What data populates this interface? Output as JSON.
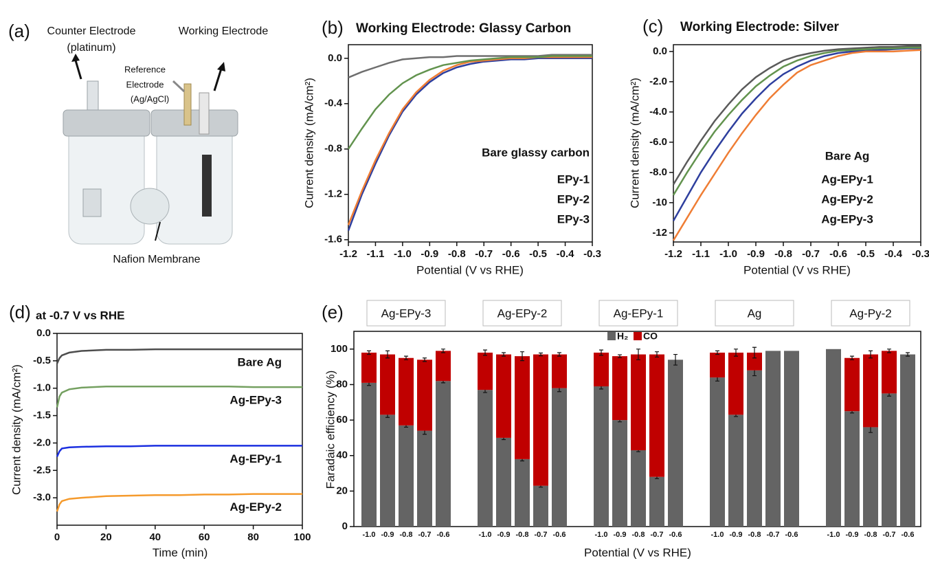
{
  "panel_a": {
    "label": "(a)",
    "counter_electrode": "Counter Electrode",
    "counter_material": "(platinum)",
    "working_electrode": "Working  Electrode",
    "reference_1": "Reference",
    "reference_2": "Electrode",
    "reference_material": "(Ag/AgCl)",
    "membrane": "Nafion Membrane"
  },
  "chart_data": [
    {
      "type": "line",
      "panel_label": "(b)",
      "title": "Working Electrode: Glassy Carbon",
      "x_label": "Potential (V vs RHE)",
      "y_label": "Current density (mA/cm²)",
      "x": [
        -1.2,
        -1.15,
        -1.1,
        -1.05,
        -1,
        -0.95,
        -0.9,
        -0.85,
        -0.8,
        -0.75,
        -0.7,
        -0.65,
        -0.6,
        -0.55,
        -0.5,
        -0.45,
        -0.4,
        -0.35,
        -0.3
      ],
      "xlim": [
        -1.2,
        -0.3
      ],
      "xticks": [
        -1.2,
        -1.1,
        {
          "value": -1,
          "label": "-1.0"
        },
        -0.9,
        -0.8,
        -0.7,
        -0.6,
        -0.5,
        -0.4,
        -0.3
      ],
      "ylim": [
        -1.62,
        0.12
      ],
      "yticks": [
        {
          "value": 0,
          "label": "0.0"
        },
        -0.4,
        -0.8,
        -1.2,
        -1.6
      ],
      "series": [
        {
          "name": "Bare glassy carbon",
          "color": "#6e6e6e",
          "values": [
            -0.17,
            -0.12,
            -0.08,
            -0.04,
            -0.01,
            0,
            0.01,
            0.01,
            0.02,
            0.02,
            0.02,
            0.02,
            0.02,
            0.02,
            0.02,
            0.03,
            0.03,
            0.03,
            0.03
          ]
        },
        {
          "name": "EPy-1",
          "color": "#2e3f9e",
          "values": [
            -1.52,
            -1.2,
            -0.93,
            -0.68,
            -0.47,
            -0.32,
            -0.21,
            -0.13,
            -0.08,
            -0.05,
            -0.03,
            -0.02,
            -0.01,
            -0.01,
            0,
            0,
            0,
            0,
            0
          ]
        },
        {
          "name": "EPy-2",
          "color": "#ef7d34",
          "values": [
            -1.47,
            -1.17,
            -0.9,
            -0.66,
            -0.45,
            -0.3,
            -0.19,
            -0.11,
            -0.06,
            -0.03,
            -0.02,
            -0.01,
            0,
            0,
            0.01,
            0.01,
            0.01,
            0.01,
            0.01
          ]
        },
        {
          "name": "EPy-3",
          "color": "#62934e",
          "values": [
            -0.8,
            -0.62,
            -0.45,
            -0.32,
            -0.22,
            -0.15,
            -0.1,
            -0.06,
            -0.04,
            -0.02,
            -0.01,
            0,
            0.01,
            0.01,
            0.01,
            0.02,
            0.02,
            0.02,
            0.02
          ]
        }
      ]
    },
    {
      "type": "line",
      "panel_label": "(c)",
      "title": "Working Electrode: Silver",
      "x_label": "Potential (V vs RHE)",
      "y_label": "Current density (mA/cm²)",
      "x": [
        -1.2,
        -1.15,
        -1.1,
        -1.05,
        -1,
        -0.95,
        -0.9,
        -0.85,
        -0.8,
        -0.75,
        -0.7,
        -0.65,
        -0.6,
        -0.55,
        -0.5,
        -0.45,
        -0.4,
        -0.35,
        -0.3
      ],
      "xlim": [
        -1.2,
        -0.3
      ],
      "xticks": [
        -1.2,
        -1.1,
        {
          "value": -1,
          "label": "-1.0"
        },
        -0.9,
        -0.8,
        -0.7,
        -0.6,
        -0.5,
        -0.4,
        -0.3
      ],
      "ylim": [
        -12.6,
        0.45
      ],
      "yticks": [
        {
          "value": 0,
          "label": "0.0"
        },
        {
          "value": -2,
          "label": "-2.0"
        },
        {
          "value": -4,
          "label": "-4.0"
        },
        {
          "value": -6,
          "label": "-6.0"
        },
        {
          "value": -8,
          "label": "-8.0"
        },
        -10,
        -12
      ],
      "series": [
        {
          "name": "Bare Ag",
          "color": "#5a5a5a",
          "values": [
            -8.8,
            -7.3,
            -5.9,
            -4.6,
            -3.5,
            -2.5,
            -1.7,
            -1.1,
            -0.6,
            -0.3,
            -0.1,
            0.05,
            0.15,
            0.2,
            0.25,
            0.3,
            0.3,
            0.35,
            0.35
          ]
        },
        {
          "name": "Ag-EPy-1",
          "color": "#2e3f9e",
          "values": [
            -11.2,
            -9.6,
            -8,
            -6.6,
            -5.3,
            -4.1,
            -3.1,
            -2.2,
            -1.5,
            -1,
            -0.6,
            -0.3,
            -0.1,
            0,
            0.05,
            0.1,
            0.15,
            0.2,
            0.2
          ]
        },
        {
          "name": "Ag-EPy-2",
          "color": "#ef7d34",
          "values": [
            -12.5,
            -11,
            -9.5,
            -8.1,
            -6.7,
            -5.4,
            -4.2,
            -3.1,
            -2.2,
            -1.4,
            -0.9,
            -0.6,
            -0.3,
            -0.1,
            0,
            0,
            0,
            0.05,
            0.1
          ]
        },
        {
          "name": "Ag-EPy-3",
          "color": "#62934e",
          "values": [
            -9.5,
            -8,
            -6.6,
            -5.3,
            -4.2,
            -3.2,
            -2.3,
            -1.6,
            -1,
            -0.6,
            -0.3,
            -0.1,
            0.05,
            0.1,
            0.15,
            0.2,
            0.2,
            0.25,
            0.25
          ]
        }
      ]
    },
    {
      "type": "line",
      "panel_label": "(d)",
      "title": "at -0.7 V vs RHE",
      "x_label": "Time (min)",
      "y_label": "Current density (mA/cm²)",
      "x": [
        0,
        1,
        2,
        5,
        10,
        20,
        30,
        40,
        50,
        60,
        70,
        80,
        90,
        100
      ],
      "xlim": [
        0,
        100
      ],
      "xticks": [
        0,
        20,
        40,
        60,
        80,
        100
      ],
      "ylim": [
        -3.5,
        0
      ],
      "yticks": [
        {
          "value": 0,
          "label": "0.0"
        },
        -0.5,
        {
          "value": -1,
          "label": "-1.0"
        },
        -1.5,
        {
          "value": -2,
          "label": "-2.0"
        },
        -2.5,
        {
          "value": -3,
          "label": "-3.0"
        }
      ],
      "series": [
        {
          "name": "Bare Ag",
          "color": "#4d4d4d",
          "values": [
            -0.55,
            -0.45,
            -0.4,
            -0.35,
            -0.32,
            -0.3,
            -0.3,
            -0.29,
            -0.29,
            -0.29,
            -0.29,
            -0.29,
            -0.29,
            -0.29
          ]
        },
        {
          "name": "Ag-EPy-3",
          "color": "#74a060",
          "values": [
            -1.35,
            -1.15,
            -1.08,
            -1.02,
            -0.99,
            -0.97,
            -0.97,
            -0.97,
            -0.97,
            -0.97,
            -0.97,
            -0.98,
            -0.98,
            -0.98
          ]
        },
        {
          "name": "Ag-EPy-1",
          "color": "#1b2fe0",
          "values": [
            -2.25,
            -2.15,
            -2.1,
            -2.08,
            -2.07,
            -2.06,
            -2.06,
            -2.05,
            -2.05,
            -2.05,
            -2.05,
            -2.05,
            -2.05,
            -2.05
          ]
        },
        {
          "name": "Ag-EPy-2",
          "color": "#f59a2c",
          "values": [
            -3.25,
            -3.12,
            -3.06,
            -3.02,
            -3,
            -2.97,
            -2.96,
            -2.95,
            -2.95,
            -2.94,
            -2.94,
            -2.93,
            -2.93,
            -2.93
          ]
        }
      ]
    },
    {
      "type": "stacked_bar",
      "panel_label": "(e)",
      "x_label": "Potential (V vs RHE)",
      "y_label": "Faradaic efficiency (%)",
      "groups": [
        "Ag-EPy-3",
        "Ag-EPy-2",
        "Ag-EPy-1",
        "Ag",
        "Ag-Py-2"
      ],
      "categories": [
        "-1.0",
        "-0.9",
        "-0.8",
        "-0.7",
        "-0.6",
        "-1.0",
        "-0.9",
        "-0.8",
        "-0.7",
        "-0.6",
        "-1.0",
        "-0.9",
        "-0.8",
        "-0.7",
        "-0.6",
        "-1.0",
        "-0.9",
        "-0.8",
        "-0.7",
        "-0.6",
        "-1.0",
        "-0.9",
        "-0.8",
        "-0.7",
        "-0.6"
      ],
      "ylim": [
        0,
        110
      ],
      "yticks": [
        0,
        20,
        40,
        60,
        80,
        100
      ],
      "series": [
        {
          "name": "H₂",
          "color": "#646464",
          "values": [
            81,
            63,
            57,
            54,
            82,
            77,
            50,
            38,
            23,
            78,
            79,
            60,
            43,
            28,
            94,
            84,
            63,
            88,
            99,
            99,
            100,
            65,
            56,
            75,
            97
          ],
          "errors": [
            1.5,
            1.5,
            1,
            2,
            1,
            1.5,
            1,
            1,
            0.8,
            2,
            1.5,
            1,
            0.8,
            1,
            3,
            2,
            1,
            3,
            null,
            null,
            null,
            1,
            3,
            1.5,
            1
          ]
        },
        {
          "name": "CO",
          "color": "#c00000",
          "values": [
            17,
            34,
            38,
            40,
            17,
            21,
            47,
            58,
            74,
            19,
            19,
            36,
            54,
            69,
            null,
            14,
            35,
            10,
            null,
            null,
            null,
            30,
            41,
            24,
            null
          ],
          "errors": [
            1,
            2,
            1,
            1,
            1,
            1.5,
            1,
            2.5,
            0.8,
            1,
            1.5,
            0.8,
            3,
            1.5,
            null,
            1,
            2,
            3,
            null,
            null,
            null,
            1,
            2,
            1,
            null
          ]
        }
      ]
    }
  ]
}
